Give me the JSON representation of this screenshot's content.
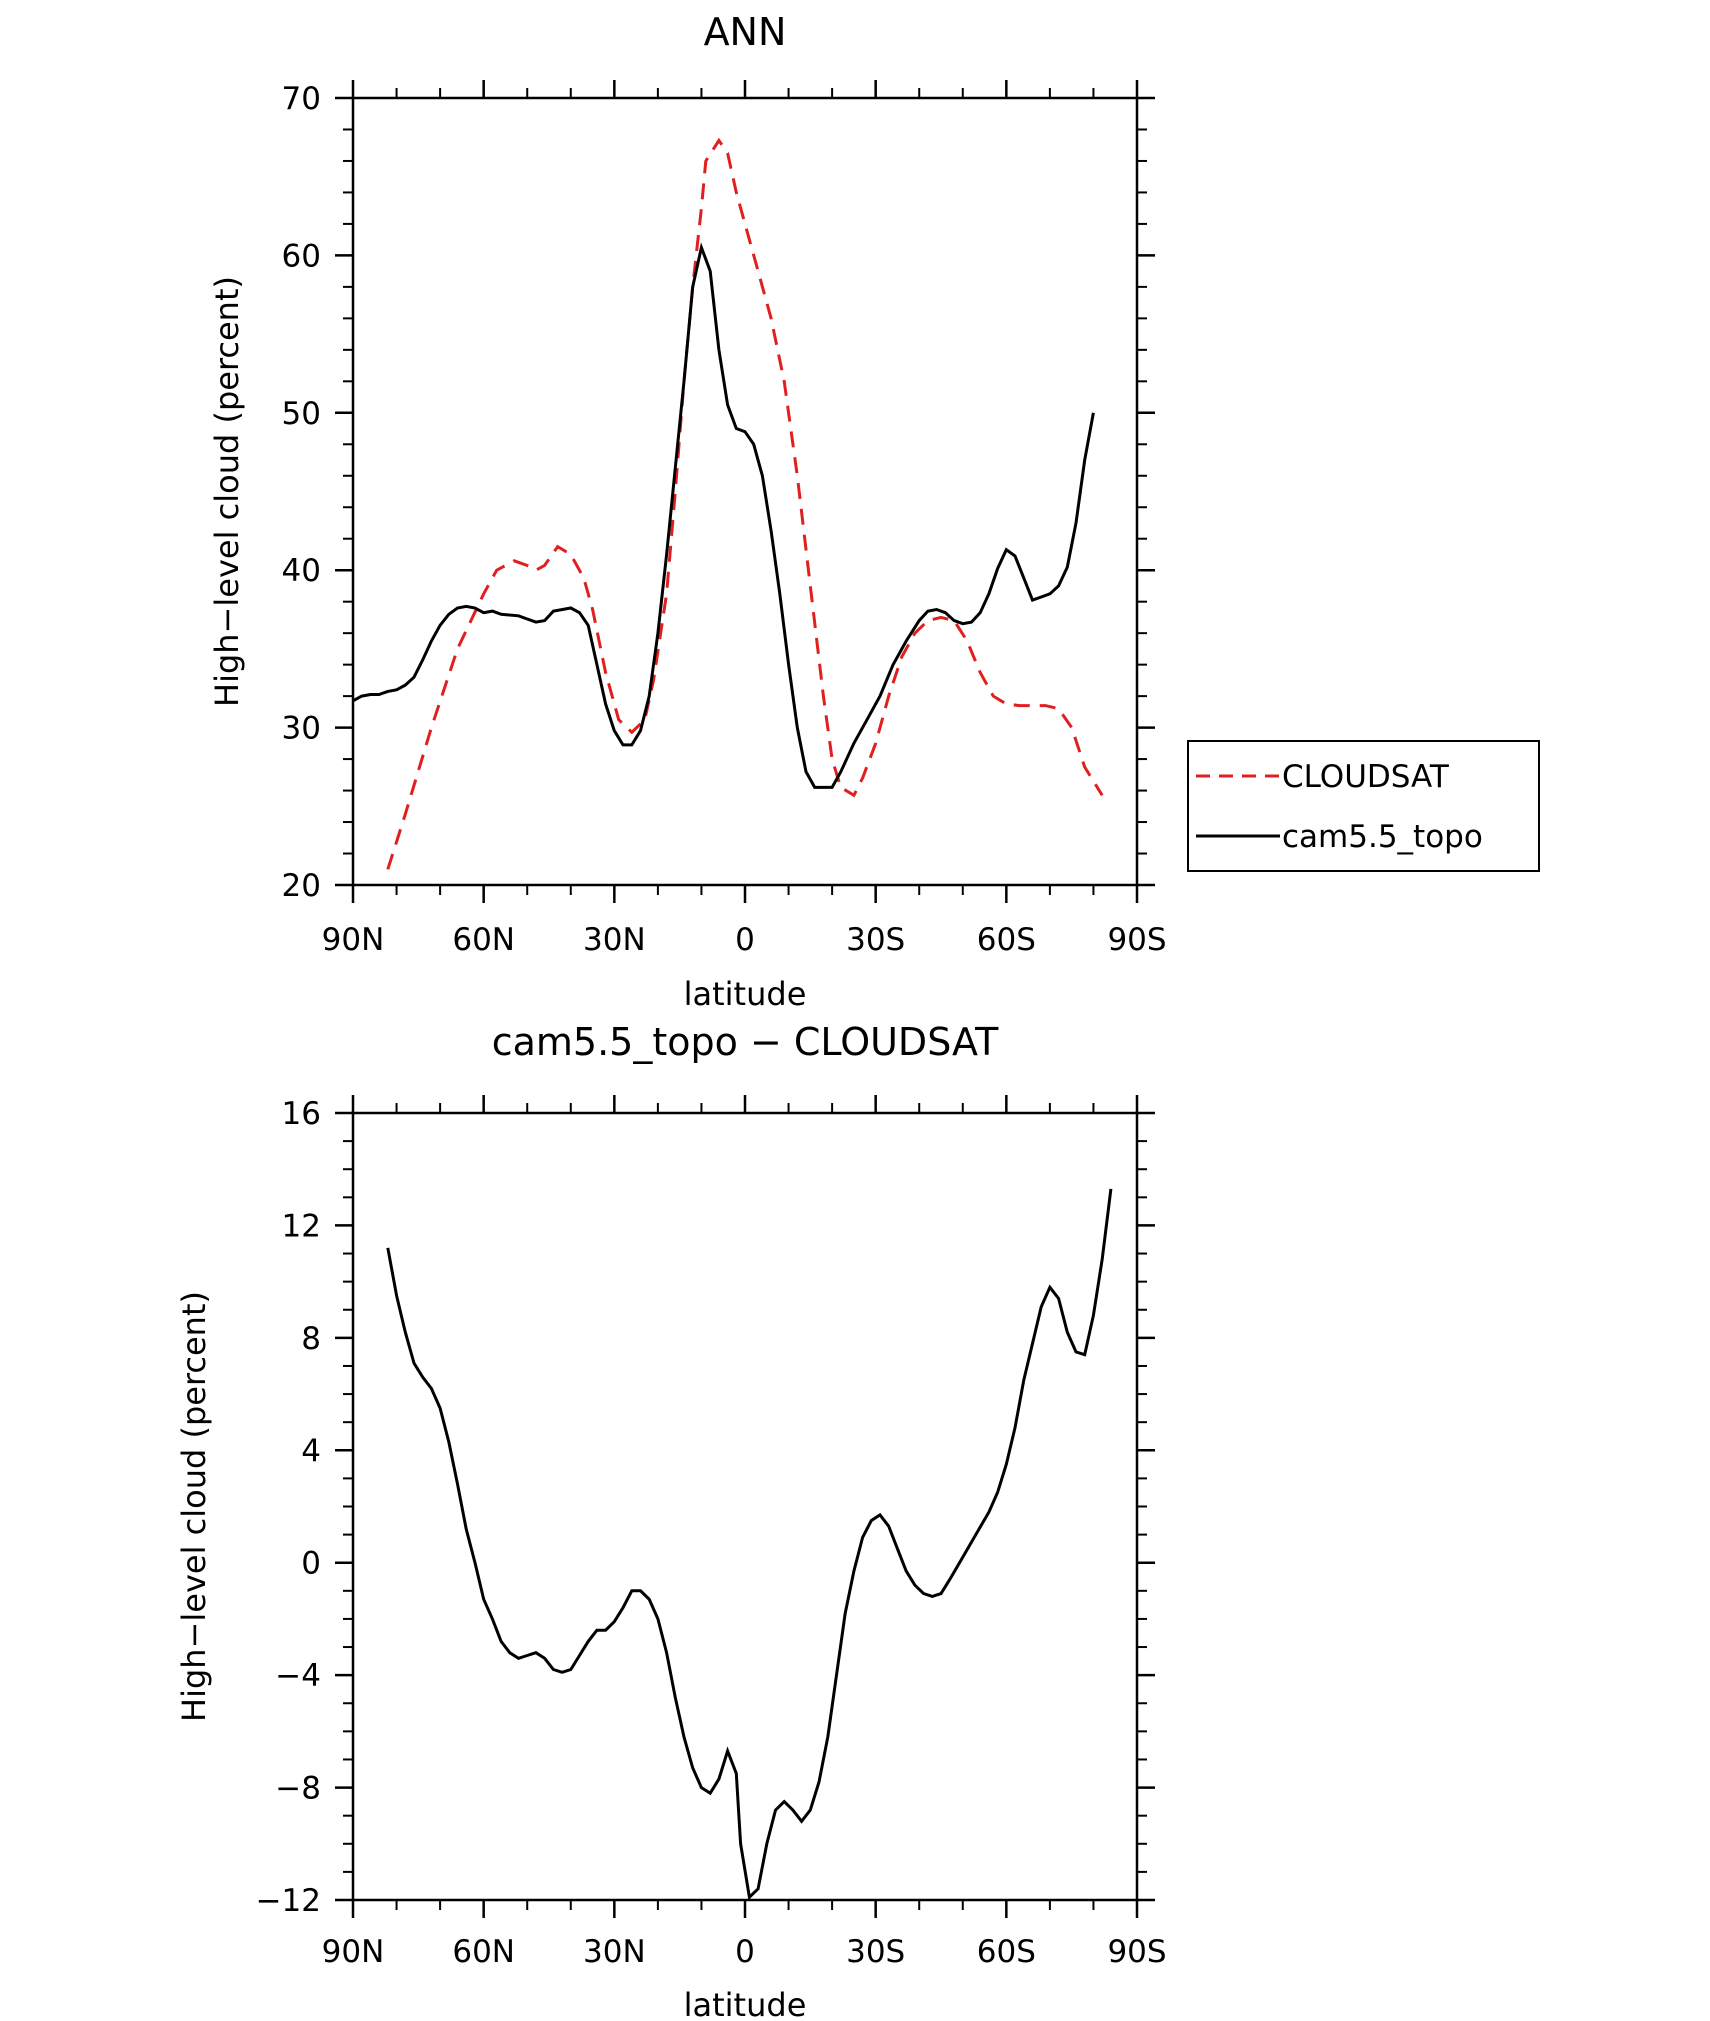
{
  "chart_data": [
    {
      "type": "line",
      "title": "ANN",
      "xlabel": "latitude",
      "ylabel": "High−level cloud (percent)",
      "xlim": [
        90,
        -90
      ],
      "ylim": [
        20,
        70
      ],
      "x_ticks": [
        90,
        60,
        30,
        0,
        -30,
        -60,
        -90
      ],
      "x_tick_labels": [
        "90N",
        "60N",
        "30N",
        "0",
        "30S",
        "60S",
        "90S"
      ],
      "y_ticks": [
        20,
        30,
        40,
        50,
        60,
        70
      ],
      "y_tick_labels": [
        "20",
        "30",
        "40",
        "50",
        "60",
        "70"
      ],
      "legend": "right",
      "series": [
        {
          "name": "CLOUDSAT",
          "color": "#e02020",
          "dash": "dashed",
          "points": [
            [
              82,
              21
            ],
            [
              78,
              24.5
            ],
            [
              72,
              30
            ],
            [
              66,
              35
            ],
            [
              60,
              38.5
            ],
            [
              57,
              40
            ],
            [
              53,
              40.6
            ],
            [
              50,
              40.3
            ],
            [
              48,
              40
            ],
            [
              46,
              40.3
            ],
            [
              43,
              41.5
            ],
            [
              40,
              41
            ],
            [
              37,
              39.5
            ],
            [
              35,
              37.5
            ],
            [
              32,
              33.5
            ],
            [
              29,
              30.5
            ],
            [
              26,
              29.7
            ],
            [
              23,
              30.5
            ],
            [
              21,
              33
            ],
            [
              18,
              38.5
            ],
            [
              16,
              45
            ],
            [
              14,
              52
            ],
            [
              12,
              58
            ],
            [
              10,
              63
            ],
            [
              9,
              66
            ],
            [
              6,
              67.3
            ],
            [
              4,
              66.5
            ],
            [
              2,
              64
            ],
            [
              0,
              62
            ],
            [
              -3,
              59
            ],
            [
              -6,
              56
            ],
            [
              -9,
              52
            ],
            [
              -12,
              46
            ],
            [
              -15,
              39
            ],
            [
              -18,
              32
            ],
            [
              -20,
              28
            ],
            [
              -22,
              26.2
            ],
            [
              -25,
              25.7
            ],
            [
              -27,
              26.8
            ],
            [
              -30,
              29
            ],
            [
              -33,
              32
            ],
            [
              -36,
              34.5
            ],
            [
              -39,
              36
            ],
            [
              -42,
              36.8
            ],
            [
              -45,
              37
            ],
            [
              -48,
              36.8
            ],
            [
              -51,
              35.5
            ],
            [
              -54,
              33.5
            ],
            [
              -57,
              32
            ],
            [
              -60,
              31.5
            ],
            [
              -63,
              31.4
            ],
            [
              -66,
              31.4
            ],
            [
              -69,
              31.4
            ],
            [
              -72,
              31.2
            ],
            [
              -75,
              30
            ],
            [
              -78,
              27.5
            ],
            [
              -82,
              25.7
            ]
          ]
        },
        {
          "name": "cam5.5_topo",
          "color": "#000000",
          "dash": "solid",
          "points": [
            [
              90,
              31.7
            ],
            [
              88,
              32
            ],
            [
              86,
              32.1
            ],
            [
              84,
              32.1
            ],
            [
              82,
              32.3
            ],
            [
              80,
              32.4
            ],
            [
              78,
              32.7
            ],
            [
              76,
              33.2
            ],
            [
              74,
              34.3
            ],
            [
              72,
              35.5
            ],
            [
              70,
              36.5
            ],
            [
              68,
              37.2
            ],
            [
              66,
              37.6
            ],
            [
              64,
              37.7
            ],
            [
              62,
              37.6
            ],
            [
              60,
              37.3
            ],
            [
              58,
              37.4
            ],
            [
              56,
              37.2
            ],
            [
              52,
              37.1
            ],
            [
              50,
              36.9
            ],
            [
              48,
              36.7
            ],
            [
              46,
              36.8
            ],
            [
              44,
              37.4
            ],
            [
              40,
              37.6
            ],
            [
              38,
              37.3
            ],
            [
              36,
              36.5
            ],
            [
              34,
              34
            ],
            [
              32,
              31.5
            ],
            [
              30,
              29.8
            ],
            [
              28,
              28.9
            ],
            [
              26,
              28.9
            ],
            [
              24,
              29.8
            ],
            [
              22,
              32
            ],
            [
              20,
              36
            ],
            [
              18,
              41
            ],
            [
              16,
              46.5
            ],
            [
              14,
              52
            ],
            [
              12,
              58
            ],
            [
              10,
              60.5
            ],
            [
              8,
              59
            ],
            [
              6,
              54
            ],
            [
              4,
              50.5
            ],
            [
              2,
              49
            ],
            [
              0,
              48.8
            ],
            [
              -2,
              48
            ],
            [
              -4,
              46
            ],
            [
              -6,
              42.5
            ],
            [
              -8,
              38.5
            ],
            [
              -10,
              34
            ],
            [
              -12,
              30
            ],
            [
              -14,
              27.2
            ],
            [
              -16,
              26.2
            ],
            [
              -20,
              26.2
            ],
            [
              -22,
              27.2
            ],
            [
              -25,
              29
            ],
            [
              -28,
              30.5
            ],
            [
              -31,
              32
            ],
            [
              -34,
              34
            ],
            [
              -37,
              35.5
            ],
            [
              -40,
              36.8
            ],
            [
              -42,
              37.4
            ],
            [
              -44,
              37.5
            ],
            [
              -46,
              37.3
            ],
            [
              -48,
              36.8
            ],
            [
              -50,
              36.6
            ],
            [
              -52,
              36.7
            ],
            [
              -54,
              37.3
            ],
            [
              -56,
              38.5
            ],
            [
              -58,
              40.1
            ],
            [
              -60,
              41.3
            ],
            [
              -62,
              40.9
            ],
            [
              -64,
              39.5
            ],
            [
              -66,
              38.1
            ],
            [
              -68,
              38.3
            ],
            [
              -70,
              38.5
            ],
            [
              -72,
              39
            ],
            [
              -74,
              40.2
            ],
            [
              -76,
              43
            ],
            [
              -78,
              47
            ],
            [
              -80,
              50
            ]
          ]
        }
      ]
    },
    {
      "type": "line",
      "title": "cam5.5_topo − CLOUDSAT",
      "xlabel": "latitude",
      "ylabel": "High−level cloud (percent)",
      "xlim": [
        90,
        -90
      ],
      "ylim": [
        -12,
        16
      ],
      "x_ticks": [
        90,
        60,
        30,
        0,
        -30,
        -60,
        -90
      ],
      "x_tick_labels": [
        "90N",
        "60N",
        "30N",
        "0",
        "30S",
        "60S",
        "90S"
      ],
      "y_ticks": [
        -12,
        -8,
        -4,
        0,
        4,
        8,
        12,
        16
      ],
      "y_tick_labels": [
        "−12",
        "−8",
        "−4",
        "0",
        "4",
        "8",
        "12",
        "16"
      ],
      "series": [
        {
          "name": "cam5.5_topo − CLOUDSAT",
          "color": "#000000",
          "dash": "solid",
          "points": [
            [
              82,
              11.2
            ],
            [
              80,
              9.5
            ],
            [
              78,
              8.2
            ],
            [
              76,
              7.1
            ],
            [
              74,
              6.6
            ],
            [
              72,
              6.2
            ],
            [
              70,
              5.5
            ],
            [
              68,
              4.3
            ],
            [
              66,
              2.8
            ],
            [
              64,
              1.2
            ],
            [
              62,
              0
            ],
            [
              60,
              -1.3
            ],
            [
              58,
              -2
            ],
            [
              56,
              -2.8
            ],
            [
              54,
              -3.2
            ],
            [
              52,
              -3.4
            ],
            [
              50,
              -3.3
            ],
            [
              48,
              -3.2
            ],
            [
              46,
              -3.4
            ],
            [
              44,
              -3.8
            ],
            [
              42,
              -3.9
            ],
            [
              40,
              -3.8
            ],
            [
              38,
              -3.3
            ],
            [
              36,
              -2.8
            ],
            [
              34,
              -2.4
            ],
            [
              32,
              -2.4
            ],
            [
              30,
              -2.1
            ],
            [
              28,
              -1.6
            ],
            [
              26,
              -1
            ],
            [
              24,
              -1
            ],
            [
              22,
              -1.3
            ],
            [
              20,
              -2
            ],
            [
              18,
              -3.2
            ],
            [
              16,
              -4.8
            ],
            [
              14,
              -6.2
            ],
            [
              12,
              -7.3
            ],
            [
              10,
              -8
            ],
            [
              8,
              -8.2
            ],
            [
              6,
              -7.7
            ],
            [
              4,
              -6.7
            ],
            [
              2,
              -7.5
            ],
            [
              1,
              -10
            ],
            [
              -1,
              -11.9
            ],
            [
              -3,
              -11.6
            ],
            [
              -5,
              -10
            ],
            [
              -7,
              -8.8
            ],
            [
              -9,
              -8.5
            ],
            [
              -11,
              -8.8
            ],
            [
              -13,
              -9.2
            ],
            [
              -15,
              -8.8
            ],
            [
              -17,
              -7.8
            ],
            [
              -19,
              -6.2
            ],
            [
              -21,
              -4
            ],
            [
              -23,
              -1.8
            ],
            [
              -25,
              -0.3
            ],
            [
              -27,
              0.9
            ],
            [
              -29,
              1.5
            ],
            [
              -31,
              1.7
            ],
            [
              -33,
              1.3
            ],
            [
              -35,
              0.5
            ],
            [
              -37,
              -0.3
            ],
            [
              -39,
              -0.8
            ],
            [
              -41,
              -1.1
            ],
            [
              -43,
              -1.2
            ],
            [
              -45,
              -1.1
            ],
            [
              -47,
              -0.6
            ],
            [
              -50,
              0.2
            ],
            [
              -53,
              1
            ],
            [
              -56,
              1.8
            ],
            [
              -58,
              2.5
            ],
            [
              -60,
              3.5
            ],
            [
              -62,
              4.8
            ],
            [
              -64,
              6.5
            ],
            [
              -66,
              7.8
            ],
            [
              -68,
              9.1
            ],
            [
              -70,
              9.8
            ],
            [
              -72,
              9.4
            ],
            [
              -74,
              8.2
            ],
            [
              -76,
              7.5
            ],
            [
              -78,
              7.4
            ],
            [
              -80,
              8.8
            ],
            [
              -82,
              10.8
            ],
            [
              -84,
              13.3
            ]
          ]
        }
      ]
    }
  ]
}
